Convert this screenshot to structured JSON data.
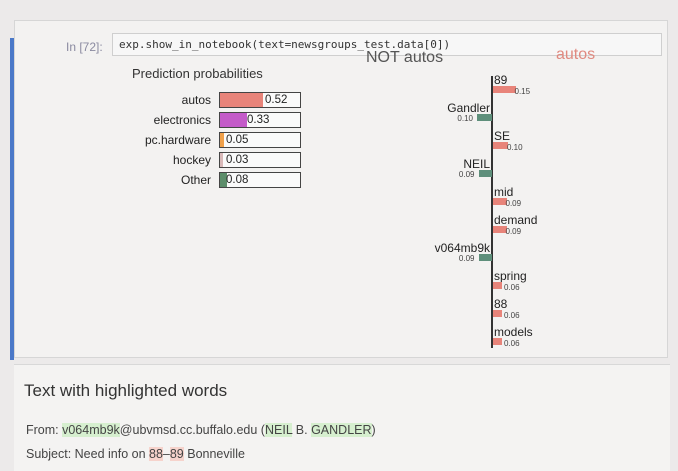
{
  "notebook": {
    "prompt": "In [72]:",
    "code": "exp.show_in_notebook(text=newsgroups_test.data[0])"
  },
  "prediction": {
    "title": "Prediction probabilities",
    "rows": [
      {
        "label": "autos",
        "value": "0.52",
        "fraction": 0.52,
        "color": "#e8847a"
      },
      {
        "label": "electronics",
        "value": "0.33",
        "fraction": 0.33,
        "color": "#c45bc9"
      },
      {
        "label": "pc.hardware",
        "value": "0.05",
        "fraction": 0.05,
        "color": "#f0a04a"
      },
      {
        "label": "hockey",
        "value": "0.03",
        "fraction": 0.03,
        "color": "#d9b9b9"
      },
      {
        "label": "Other",
        "value": "0.08",
        "fraction": 0.08,
        "color": "#5c8d6a"
      }
    ]
  },
  "explanation": {
    "not_label": "NOT autos",
    "yes_label": "autos",
    "neg_color": "#5e8f7b",
    "pos_color": "#e8847a",
    "features": [
      {
        "name": "89",
        "value": "0.15",
        "weight": 0.15,
        "side": "pos"
      },
      {
        "name": "Gandler",
        "value": "0.10",
        "weight": 0.1,
        "side": "neg"
      },
      {
        "name": "SE",
        "value": "0.10",
        "weight": 0.1,
        "side": "pos"
      },
      {
        "name": "NEIL",
        "value": "0.09",
        "weight": 0.09,
        "side": "neg"
      },
      {
        "name": "mid",
        "value": "0.09",
        "weight": 0.09,
        "side": "pos"
      },
      {
        "name": "demand",
        "value": "0.09",
        "weight": 0.09,
        "side": "pos"
      },
      {
        "name": "v064mb9k",
        "value": "0.09",
        "weight": 0.09,
        "side": "neg"
      },
      {
        "name": "spring",
        "value": "0.06",
        "weight": 0.06,
        "side": "pos"
      },
      {
        "name": "88",
        "value": "0.06",
        "weight": 0.06,
        "side": "pos"
      },
      {
        "name": "models",
        "value": "0.06",
        "weight": 0.06,
        "side": "pos"
      }
    ]
  },
  "text_panel": {
    "title": "Text with highlighted words",
    "from_prefix": "From: ",
    "from_user": "v064mb9k",
    "from_mid": "@ubvmsd.cc.buffalo.edu (",
    "from_neil": "NEIL",
    "from_b": " B. ",
    "from_gandler": "GANDLER",
    "from_end": ")",
    "subject_prefix": "Subject: Need info on ",
    "subject_88": "88",
    "subject_dash": "–",
    "subject_89": "89",
    "subject_end": " Bonneville"
  }
}
